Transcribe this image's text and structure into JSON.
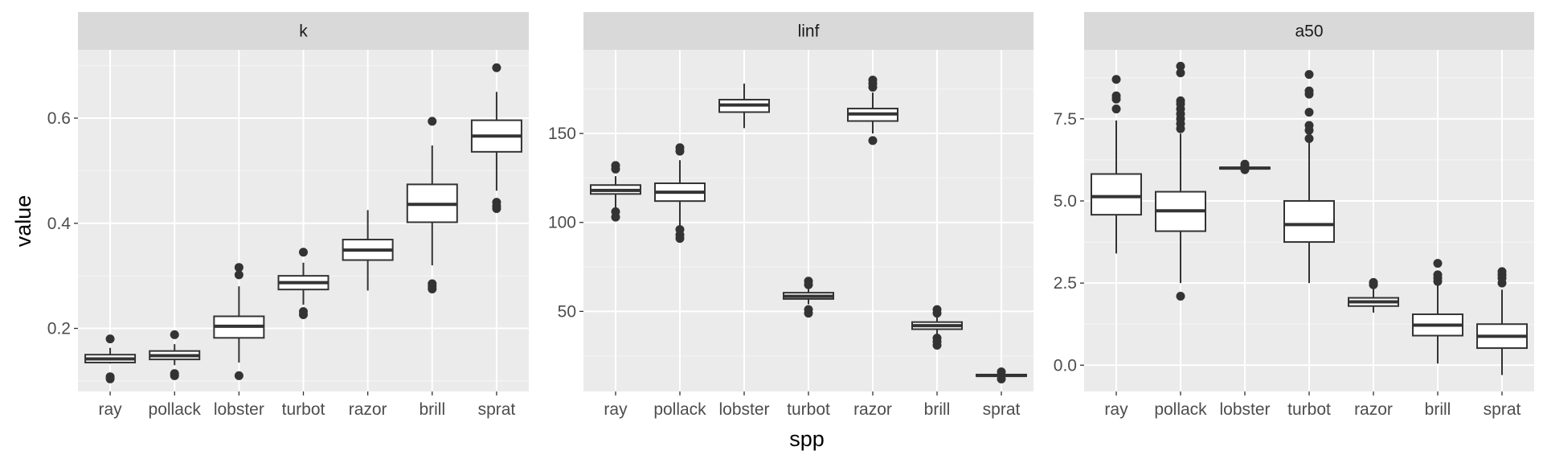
{
  "chart_data": {
    "type": "boxplot",
    "xlabel": "spp",
    "ylabel": "value",
    "categories": [
      "ray",
      "pollack",
      "lobster",
      "turbot",
      "razor",
      "brill",
      "sprat"
    ],
    "facets": [
      {
        "name": "k",
        "ylim": [
          0.08,
          0.73
        ],
        "yticks": [
          0.2,
          0.4,
          0.6
        ],
        "ytick_labels": [
          "0.2",
          "0.4",
          "0.6"
        ],
        "boxes": [
          {
            "lower": 0.133,
            "q1": 0.135,
            "median": 0.142,
            "q3": 0.15,
            "upper": 0.163,
            "outliers": [
              0.18,
              0.104,
              0.108
            ]
          },
          {
            "lower": 0.13,
            "q1": 0.141,
            "median": 0.148,
            "q3": 0.157,
            "upper": 0.17,
            "outliers": [
              0.188,
              0.11,
              0.114
            ]
          },
          {
            "lower": 0.135,
            "q1": 0.182,
            "median": 0.204,
            "q3": 0.223,
            "upper": 0.28,
            "outliers": [
              0.316,
              0.302,
              0.11
            ]
          },
          {
            "lower": 0.245,
            "q1": 0.274,
            "median": 0.287,
            "q3": 0.3,
            "upper": 0.325,
            "outliers": [
              0.345,
              0.232,
              0.226
            ]
          },
          {
            "lower": 0.272,
            "q1": 0.33,
            "median": 0.349,
            "q3": 0.369,
            "upper": 0.425,
            "outliers": []
          },
          {
            "lower": 0.32,
            "q1": 0.402,
            "median": 0.436,
            "q3": 0.474,
            "upper": 0.548,
            "outliers": [
              0.594,
              0.285,
              0.28,
              0.275
            ]
          },
          {
            "lower": 0.462,
            "q1": 0.536,
            "median": 0.566,
            "q3": 0.596,
            "upper": 0.65,
            "outliers": [
              0.696,
              0.44,
              0.433,
              0.428
            ]
          }
        ]
      },
      {
        "name": "linf",
        "ylim": [
          5,
          197
        ],
        "yticks": [
          50,
          100,
          150
        ],
        "ytick_labels": [
          "50",
          "100",
          "150"
        ],
        "boxes": [
          {
            "lower": 108,
            "q1": 116,
            "median": 118,
            "q3": 121,
            "upper": 126,
            "outliers": [
              132,
              130,
              106,
              103
            ]
          },
          {
            "lower": 98,
            "q1": 112,
            "median": 117,
            "q3": 122,
            "upper": 135,
            "outliers": [
              142,
              140,
              96,
              93,
              91
            ]
          },
          {
            "lower": 153,
            "q1": 162,
            "median": 166,
            "q3": 169,
            "upper": 178,
            "outliers": []
          },
          {
            "lower": 54,
            "q1": 57,
            "median": 58.5,
            "q3": 60.5,
            "upper": 64,
            "outliers": [
              67,
              65,
              51,
              49
            ]
          },
          {
            "lower": 150,
            "q1": 157,
            "median": 161,
            "q3": 164,
            "upper": 173,
            "outliers": [
              180,
              178,
              176,
              146
            ]
          },
          {
            "lower": 37,
            "q1": 40,
            "median": 42,
            "q3": 44,
            "upper": 47,
            "outliers": [
              51,
              49,
              35,
              33,
              31
            ]
          },
          {
            "lower": 13.5,
            "q1": 13.6,
            "median": 14,
            "q3": 14.5,
            "upper": 15,
            "outliers": [
              16,
              12
            ]
          }
        ]
      },
      {
        "name": "a50",
        "ylim": [
          -0.8,
          9.6
        ],
        "yticks": [
          0,
          2.5,
          5,
          7.5
        ],
        "ytick_labels": [
          "0.0",
          "2.5",
          "5.0",
          "7.5"
        ],
        "boxes": [
          {
            "lower": 3.4,
            "q1": 4.58,
            "median": 5.13,
            "q3": 5.82,
            "upper": 7.45,
            "outliers": [
              8.7,
              8.2,
              8.1,
              7.8
            ]
          },
          {
            "lower": 2.5,
            "q1": 4.08,
            "median": 4.7,
            "q3": 5.28,
            "upper": 7.05,
            "outliers": [
              9.1,
              8.9,
              8.05,
              7.95,
              7.8,
              7.65,
              7.5,
              7.35,
              7.2,
              2.1
            ]
          },
          {
            "lower": 5.97,
            "q1": 5.98,
            "median": 6.0,
            "q3": 6.02,
            "upper": 6.04,
            "outliers": [
              6.12,
              6.07,
              5.95
            ]
          },
          {
            "lower": 2.5,
            "q1": 3.75,
            "median": 4.28,
            "q3": 5.0,
            "upper": 6.8,
            "outliers": [
              8.85,
              8.35,
              8.25,
              7.7,
              7.3,
              7.15,
              6.9
            ]
          },
          {
            "lower": 1.6,
            "q1": 1.8,
            "median": 1.93,
            "q3": 2.05,
            "upper": 2.35,
            "outliers": [
              2.52,
              2.45
            ]
          },
          {
            "lower": 0.05,
            "q1": 0.9,
            "median": 1.22,
            "q3": 1.55,
            "upper": 2.45,
            "outliers": [
              3.1,
              2.75,
              2.65,
              2.55
            ]
          },
          {
            "lower": -0.3,
            "q1": 0.52,
            "median": 0.88,
            "q3": 1.25,
            "upper": 2.3,
            "outliers": [
              2.85,
              2.75,
              2.65,
              2.5
            ]
          }
        ]
      }
    ]
  }
}
